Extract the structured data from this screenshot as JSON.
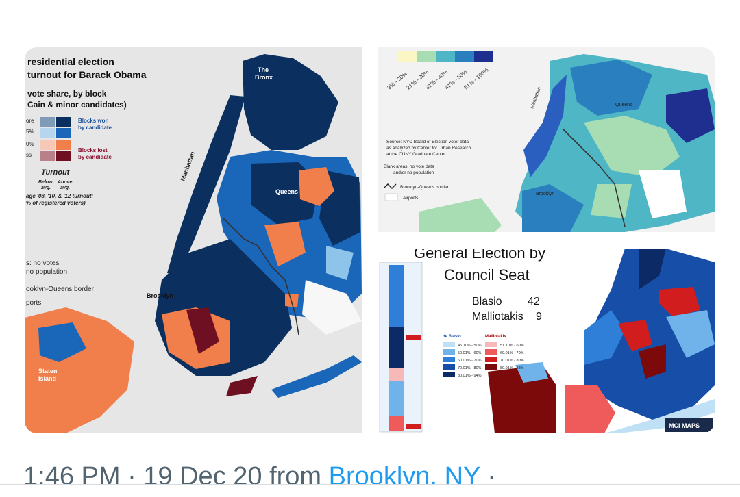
{
  "map_left": {
    "title_line1": "residential election",
    "title_line2": "turnout for Barack Obama",
    "subtitle_line1": "vote share, by block",
    "subtitle_line2": "Cain & minor candidates)",
    "legend_row_labels": [
      "ore",
      "5%",
      "0%",
      "ss"
    ],
    "blocks_won_line1": "Blocks won",
    "blocks_won_line2": "by candidate",
    "blocks_lost_line1": "Blocks lost",
    "blocks_lost_line2": "by candidate",
    "turnout_label": "Turnout",
    "below_label_line1": "Below",
    "below_label_line2": "avg.",
    "above_label_line1": "Above",
    "above_label_line2": "avg.",
    "avg_note_line1": "age '08, '10, & '12 turnout:",
    "avg_note_line2": "% of registered voters)",
    "no_votes_line1": "s: no votes",
    "no_votes_line2": "no population",
    "border_note": "ooklyn-Queens border",
    "airports_note": "ports",
    "place_bronx_line1": "The",
    "place_bronx_line2": "Bronx",
    "place_manhattan": "Manhattan",
    "place_queens": "Queens",
    "place_brooklyn": "Brooklyn",
    "place_staten_line1": "Staten",
    "place_staten_line2": "Island",
    "colors": {
      "won_dark": "#0b2f5e",
      "won_mid": "#1a66b8",
      "won_light": "#8ec3ea",
      "lost_light": "#f7b49a",
      "lost_mid": "#f07f4c",
      "lost_dark": "#6e0f22",
      "land": "#e6e6e6"
    }
  },
  "map_turnout": {
    "legend_labels": [
      "3% - 20%",
      "21% - 30%",
      "31% - 40%",
      "41% - 50%",
      "51% - 100%"
    ],
    "legend_colors": [
      "#fbf7c4",
      "#a8dcb2",
      "#4fb6c5",
      "#2a7fbf",
      "#1f2f8f"
    ],
    "source_line1": "Source: NYC Board of Election voter data",
    "source_line2": "as analyzed by Center for Urban Research",
    "source_line3": "at the CUNY Graduate Center",
    "blank_line1": "Blank areas: no vote data",
    "blank_line2": "and/or no population",
    "border_note": "Brooklyn-Queens border",
    "airports_note": "Airports",
    "place_manhattan": "Manhattan",
    "place_queens": "Queens",
    "place_brooklyn": "Brooklyn"
  },
  "map_council": {
    "title_line1": "General Election by",
    "title_line2": "Council Seat",
    "cand1_name": "Blasio",
    "cand1_seats": "42",
    "cand2_name": "Malliotakis",
    "cand2_seats": "9",
    "legend_col1_title": "de Blasio",
    "legend_col2_title": "Malliotakis",
    "legend_col1": [
      "45.10% - 50%",
      "50.01% - 60%",
      "60.01% - 70%",
      "70.01% - 80%",
      "80.01% - 94%"
    ],
    "legend_col2": [
      "51.10% - 60%",
      "60.01% - 70%",
      "70.01% - 80%",
      "80.01% - 88%"
    ],
    "legend_col1_colors": [
      "#bfe0f5",
      "#6fb3ea",
      "#2f7fd8",
      "#174fa8",
      "#0b2a66"
    ],
    "legend_col2_colors": [
      "#f7b8b8",
      "#ef5a5a",
      "#d11d1d",
      "#7c0a0a"
    ],
    "badge": "MCI MAPS"
  },
  "footer": {
    "time": "1:46 PM · 19 Dec 20 from ",
    "location": "Brooklyn, NY",
    "trail": " ·"
  }
}
